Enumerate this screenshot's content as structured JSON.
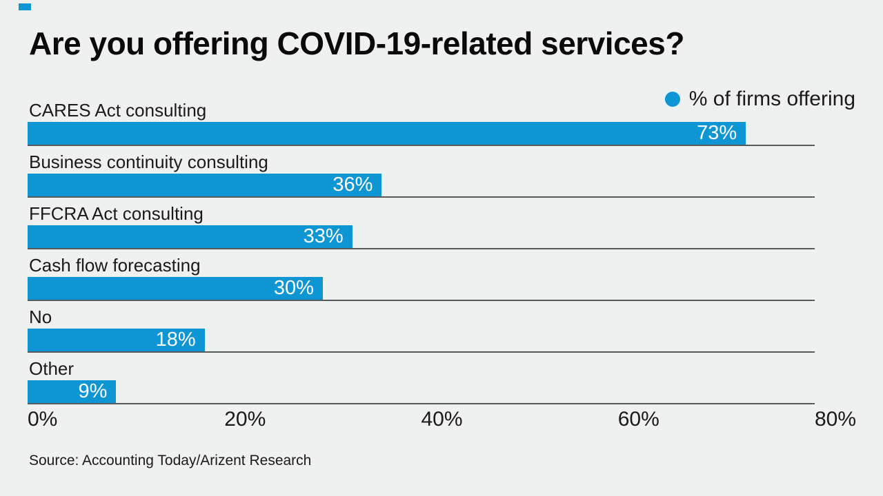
{
  "page": {
    "background_color": "#eff0f0",
    "accent_color": "#0e96d4",
    "separator_color": "#58595b",
    "text_color": "#1a1a1a"
  },
  "brand": {
    "mark": "blue-square",
    "mark_color": "#0e96d4"
  },
  "title": "Are you offering COVID-19-related services?",
  "legend": {
    "dot_color": "#0e96d4",
    "label": "% of firms offering",
    "position": "top-right"
  },
  "chart_data": {
    "type": "bar",
    "orientation": "horizontal",
    "title": "Are you offering COVID-19-related services?",
    "series_name": "% of firms offering",
    "categories": [
      "CARES Act consulting",
      "Business continuity consulting",
      "FFCRA Act consulting",
      "Cash flow forecasting",
      "No",
      "Other"
    ],
    "values": [
      73,
      36,
      33,
      30,
      18,
      9
    ],
    "value_labels": [
      "73%",
      "36%",
      "33%",
      "30%",
      "18%",
      "9%"
    ],
    "xlabel": "",
    "ylabel": "",
    "xlim": [
      0,
      80
    ],
    "x_axis_ticks": [
      "0%",
      "20%",
      "40%",
      "60%",
      "80%"
    ],
    "bar_color": "#0e96d4",
    "value_label_color": "#ffffff",
    "grid": "horizontal separator line under each bar",
    "legend_position": "top-right"
  },
  "source": "Source: Accounting Today/Arizent Research"
}
